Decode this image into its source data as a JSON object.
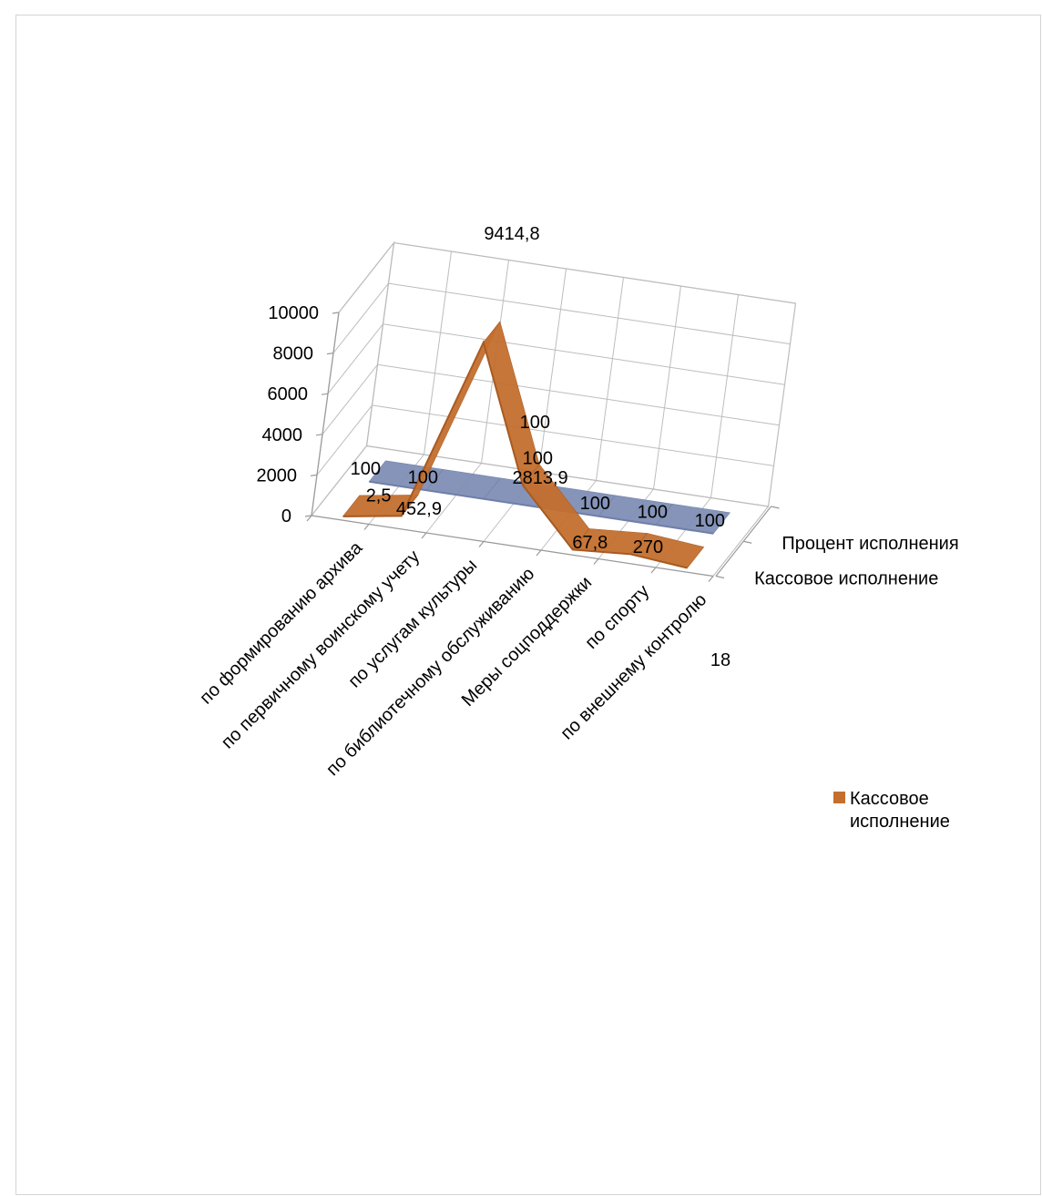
{
  "chart_data": {
    "type": "line",
    "style": "3d-ribbon",
    "categories": [
      "по формированию архива",
      "по первичному воинскому учету",
      "по услугам культуры",
      "по библиотечному обслуживанию",
      "Меры соцподдержки",
      "по спорту",
      "по внешнему контролю"
    ],
    "series": [
      {
        "name": "Процент исполнения",
        "values": [
          100,
          100,
          100,
          100,
          100,
          100,
          100
        ],
        "labels": [
          "100",
          "100",
          "100",
          "100",
          "100",
          "100",
          "100"
        ],
        "color": "#7f8fb5"
      },
      {
        "name": "Кассовое исполнение",
        "values": [
          2.5,
          452.9,
          9414.8,
          2813.9,
          67.8,
          270,
          18
        ],
        "labels": [
          "2,5",
          "452,9",
          "9414,8",
          "2813,9",
          "67,8",
          "270",
          "18"
        ],
        "color": "#c46f2e"
      }
    ],
    "y_ticks": [
      "0",
      "2000",
      "4000",
      "6000",
      "8000",
      "10000"
    ],
    "ylim": [
      0,
      10000
    ],
    "depth_labels": [
      "Процент исполнения",
      "Кассовое исполнение"
    ],
    "legend": {
      "position": "right",
      "entries": [
        "Кассовое исполнение"
      ]
    },
    "grid": true
  }
}
